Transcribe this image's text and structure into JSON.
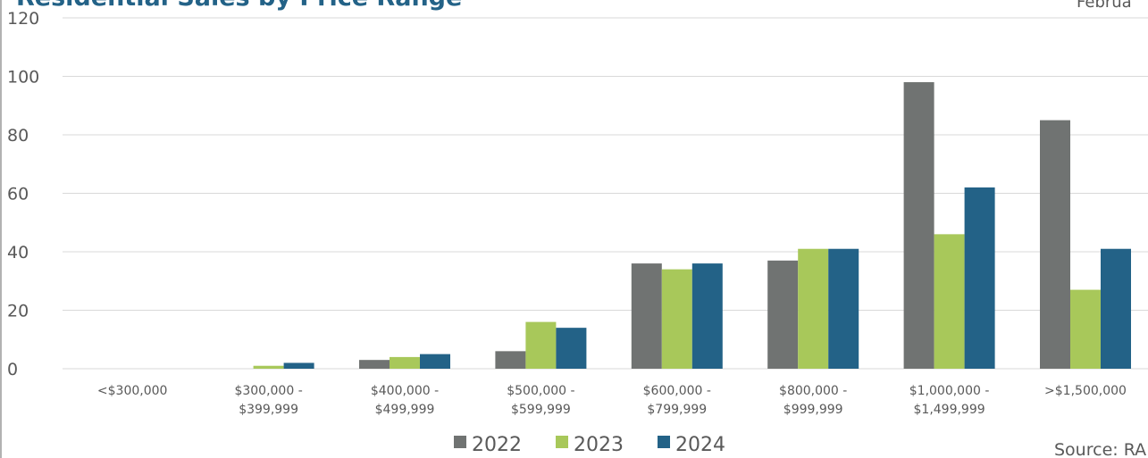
{
  "chart_data": {
    "type": "bar",
    "title": "Residential Sales by Price Range",
    "subtitle": "Februa",
    "source": "Source: RAH",
    "categories": [
      "<$300,000",
      "$300,000 -\n$399,999",
      "$400,000 -\n$499,999",
      "$500,000 -\n$599,999",
      "$600,000 -\n$799,999",
      "$800,000 -\n$999,999",
      "$1,000,000 -\n$1,499,999",
      ">$1,500,000"
    ],
    "series": [
      {
        "name": "2022",
        "color": "#707372",
        "values": [
          0,
          0,
          3,
          6,
          36,
          37,
          98,
          85
        ]
      },
      {
        "name": "2023",
        "color": "#a8c85a",
        "values": [
          0,
          1,
          4,
          16,
          34,
          41,
          46,
          27
        ]
      },
      {
        "name": "2024",
        "color": "#236287",
        "values": [
          0,
          2,
          5,
          14,
          36,
          41,
          62,
          41
        ]
      }
    ],
    "ylim": [
      0,
      120
    ],
    "yticks": [
      0,
      20,
      40,
      60,
      80,
      100,
      120
    ],
    "grid": true,
    "legend": "bottom"
  }
}
